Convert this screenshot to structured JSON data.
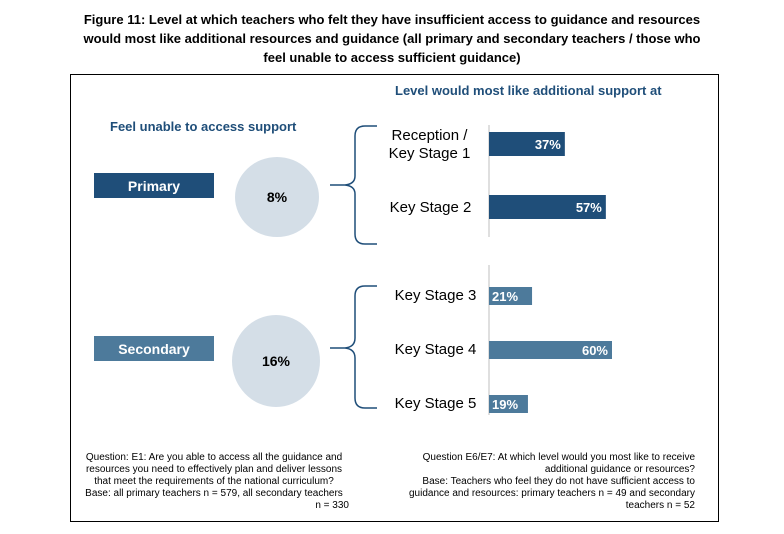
{
  "title_lines": [
    "Figure 11: Level at which teachers who felt they have insufficient access to guidance and resources",
    "would most like additional resources and guidance (all primary and secondary teachers / those who",
    "feel unable to access sufficient guidance)"
  ],
  "left_header": "Feel unable to access support",
  "right_header": "Level would most like additional support at",
  "colors": {
    "primary_bar": "#1f4e79",
    "secondary_bar": "#4d7a9b",
    "circle": "#d4dee7",
    "header_text": "#1f4e79"
  },
  "groups": [
    {
      "label": "Primary",
      "percent": "8%"
    },
    {
      "label": "Secondary",
      "percent": "16%"
    }
  ],
  "chart_data": {
    "type": "bar",
    "orientation": "horizontal",
    "title": "Level would most like additional support at",
    "xlim": [
      0,
      100
    ],
    "groups": [
      {
        "name": "Primary",
        "categories": [
          [
            "Reception /",
            "Key Stage 1"
          ],
          [
            "Key Stage 2"
          ]
        ],
        "values": [
          37,
          57
        ],
        "labels": [
          "37%",
          "57%"
        ]
      },
      {
        "name": "Secondary",
        "categories": [
          [
            "Key Stage 3"
          ],
          [
            "Key Stage 4"
          ],
          [
            "Key Stage 5"
          ]
        ],
        "values": [
          21,
          60,
          19
        ],
        "labels": [
          "21%",
          "60%",
          "19%"
        ]
      }
    ]
  },
  "notes": {
    "left": [
      "Question: E1: Are you able to access all the guidance and",
      "resources you need to effectively plan and deliver lessons",
      "that meet the requirements of the national curriculum?",
      "Base: all primary teachers n = 579, all secondary teachers",
      "n = 330"
    ],
    "right": [
      "Question E6/E7: At which level would you most like to receive",
      "additional guidance or resources?",
      "Base: Teachers who feel they do not have sufficient access to",
      "guidance and resources: primary teachers n = 49 and secondary",
      "teachers n = 52"
    ]
  }
}
